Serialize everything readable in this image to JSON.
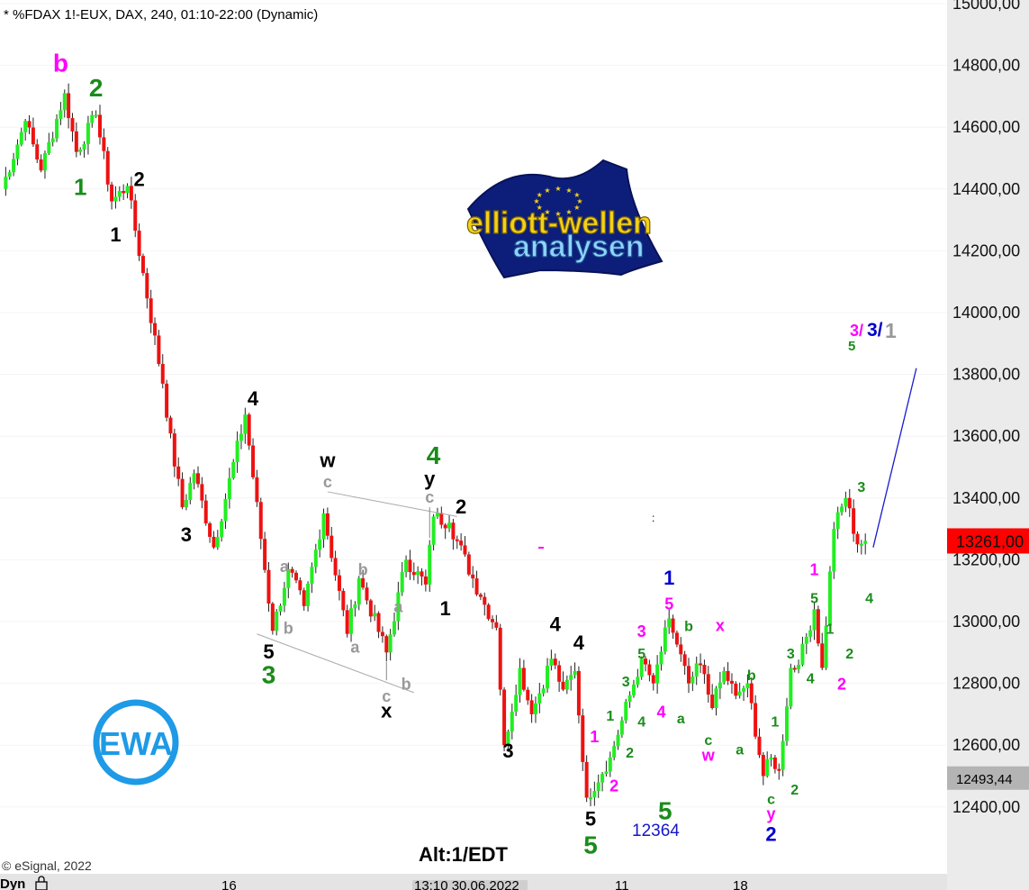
{
  "header": "* %FDAX 1!-EUX, DAX, 240, 01:10-22:00 (Dynamic)",
  "copyright": "© eSignal, 2022",
  "bottom_bar": {
    "mode_label": "Dyn",
    "date_labels": [
      "16",
      "13:10 30.06.2022",
      "11",
      "18"
    ]
  },
  "price_tags": {
    "current": "13261,00",
    "current_value": 13261,
    "secondary": "12493,44",
    "secondary_value": 12493.44
  },
  "annotations": {
    "low_value": "12364",
    "alt_count": "Alt:1/EDT",
    "target_magenta": "3/",
    "target_blue": "3/",
    "target_gray": "1",
    "target_green": "5"
  },
  "logo": {
    "line1": "elliott-wellen",
    "line2": "analysen",
    "badge": "EWA"
  },
  "colors": {
    "bull_candle": "#22ee22",
    "bear_candle": "#ee1111",
    "wave_green": "#1a8c1a",
    "wave_magenta": "#ff00ff",
    "wave_blue": "#0000cc",
    "wave_gray": "#999999",
    "price_tag_red": "#ff0000",
    "logo_blue": "#1e9ae6"
  },
  "chart_data": {
    "type": "candlestick",
    "instrument": "%FDAX 1!-EUX",
    "timeframe": "240",
    "ylim": [
      12300,
      15000
    ],
    "y_ticks": [
      12400,
      12600,
      12800,
      13000,
      13200,
      13400,
      13600,
      13800,
      14000,
      14200,
      14400,
      14600,
      14800,
      15000
    ],
    "y_tick_labels": [
      "12400,00",
      "12600,00",
      "12800,00",
      "13000,00",
      "13200,00",
      "13400,00",
      "13600,00",
      "13800,00",
      "14000,00",
      "14200,00",
      "14400,00",
      "14600,00",
      "14800,00",
      "15000,00"
    ],
    "pivots": [
      {
        "bar": 0,
        "price": 14400
      },
      {
        "bar": 6,
        "price": 14620
      },
      {
        "bar": 10,
        "price": 14460
      },
      {
        "bar": 16,
        "price": 14710
      },
      {
        "bar": 19,
        "price": 14520
      },
      {
        "bar": 24,
        "price": 14640
      },
      {
        "bar": 28,
        "price": 14360
      },
      {
        "bar": 32,
        "price": 14410
      },
      {
        "bar": 41,
        "price": 13770
      },
      {
        "bar": 42,
        "price": 13660
      },
      {
        "bar": 46,
        "price": 13370
      },
      {
        "bar": 49,
        "price": 13480
      },
      {
        "bar": 54,
        "price": 13240
      },
      {
        "bar": 62,
        "price": 13670
      },
      {
        "bar": 69,
        "price": 12970
      },
      {
        "bar": 73,
        "price": 13170
      },
      {
        "bar": 77,
        "price": 13050
      },
      {
        "bar": 82,
        "price": 13350
      },
      {
        "bar": 88,
        "price": 12960
      },
      {
        "bar": 91,
        "price": 13140
      },
      {
        "bar": 98,
        "price": 12900
      },
      {
        "bar": 103,
        "price": 13200
      },
      {
        "bar": 108,
        "price": 13120
      },
      {
        "bar": 110,
        "price": 13340
      },
      {
        "bar": 114,
        "price": 13320
      },
      {
        "bar": 122,
        "price": 13080
      },
      {
        "bar": 126,
        "price": 12980
      },
      {
        "bar": 128,
        "price": 12600
      },
      {
        "bar": 132,
        "price": 12850
      },
      {
        "bar": 135,
        "price": 12700
      },
      {
        "bar": 140,
        "price": 12880
      },
      {
        "bar": 143,
        "price": 12780
      },
      {
        "bar": 146,
        "price": 12840
      },
      {
        "bar": 149,
        "price": 12430
      },
      {
        "bar": 155,
        "price": 12560
      },
      {
        "bar": 158,
        "price": 12680
      },
      {
        "bar": 163,
        "price": 12880
      },
      {
        "bar": 166,
        "price": 12800
      },
      {
        "bar": 170,
        "price": 13010
      },
      {
        "bar": 175,
        "price": 12800
      },
      {
        "bar": 178,
        "price": 12860
      },
      {
        "bar": 181,
        "price": 12720
      },
      {
        "bar": 184,
        "price": 12840
      },
      {
        "bar": 187,
        "price": 12760
      },
      {
        "bar": 190,
        "price": 12800
      },
      {
        "bar": 194,
        "price": 12500
      },
      {
        "bar": 196,
        "price": 12560
      },
      {
        "bar": 198,
        "price": 12520
      },
      {
        "bar": 201,
        "price": 12850
      },
      {
        "bar": 203,
        "price": 12860
      },
      {
        "bar": 207,
        "price": 13040
      },
      {
        "bar": 209,
        "price": 12850
      },
      {
        "bar": 212,
        "price": 13300
      },
      {
        "bar": 215,
        "price": 13400
      },
      {
        "bar": 218,
        "price": 13250
      },
      {
        "bar": 220,
        "price": 13261
      }
    ],
    "projection": {
      "from_bar": 222,
      "from_price": 13240,
      "to_bar": 233,
      "to_price": 13820
    },
    "wave_labels": [
      {
        "text": "b",
        "color": "magenta",
        "bar": 15,
        "price": 14780,
        "size": 28
      },
      {
        "text": "2",
        "color": "green",
        "bar": 24,
        "price": 14700,
        "size": 28
      },
      {
        "text": "1",
        "color": "green",
        "bar": 20,
        "price": 14380,
        "size": 26
      },
      {
        "text": "2",
        "color": "black",
        "bar": 35,
        "price": 14410,
        "size": 22
      },
      {
        "text": "1",
        "color": "black",
        "bar": 29,
        "price": 14230,
        "size": 22
      },
      {
        "text": "4",
        "color": "black",
        "bar": 64,
        "price": 13700,
        "size": 22
      },
      {
        "text": "3",
        "color": "black",
        "bar": 47,
        "price": 13260,
        "size": 22
      },
      {
        "text": "w",
        "color": "black",
        "bar": 83,
        "price": 13500,
        "size": 22
      },
      {
        "text": "c",
        "color": "gray",
        "bar": 83,
        "price": 13435,
        "size": 18
      },
      {
        "text": "4",
        "color": "green",
        "bar": 110,
        "price": 13510,
        "size": 28
      },
      {
        "text": "y",
        "color": "black",
        "bar": 109,
        "price": 13440,
        "size": 22
      },
      {
        "text": "c",
        "color": "gray",
        "bar": 109,
        "price": 13385,
        "size": 18
      },
      {
        "text": "2",
        "color": "black",
        "bar": 117,
        "price": 13350,
        "size": 22
      },
      {
        "text": "a",
        "color": "gray",
        "bar": 72,
        "price": 13160,
        "size": 18
      },
      {
        "text": "b",
        "color": "gray",
        "bar": 92,
        "price": 13150,
        "size": 18
      },
      {
        "text": "a",
        "color": "gray",
        "bar": 101,
        "price": 13030,
        "size": 18
      },
      {
        "text": "b",
        "color": "gray",
        "bar": 73,
        "price": 12960,
        "size": 18
      },
      {
        "text": "a",
        "color": "gray",
        "bar": 90,
        "price": 12900,
        "size": 18
      },
      {
        "text": "b",
        "color": "gray",
        "bar": 103,
        "price": 12780,
        "size": 18
      },
      {
        "text": "c",
        "color": "gray",
        "bar": 98,
        "price": 12740,
        "size": 18
      },
      {
        "text": "x",
        "color": "black",
        "bar": 98,
        "price": 12690,
        "size": 22
      },
      {
        "text": "5",
        "color": "black",
        "bar": 68,
        "price": 12880,
        "size": 22
      },
      {
        "text": "3",
        "color": "green",
        "bar": 68,
        "price": 12800,
        "size": 28
      },
      {
        "text": "1",
        "color": "black",
        "bar": 113,
        "price": 13020,
        "size": 22
      },
      {
        "text": "1",
        "color": "blue",
        "bar": 170,
        "price": 13120,
        "size": 22
      },
      {
        "text": "5",
        "color": "magenta",
        "bar": 170,
        "price": 13040,
        "size": 18
      },
      {
        "text": "4",
        "color": "black",
        "bar": 141,
        "price": 12970,
        "size": 22
      },
      {
        "text": "4",
        "color": "black",
        "bar": 147,
        "price": 12910,
        "size": 22
      },
      {
        "text": "3",
        "color": "magenta",
        "bar": 163,
        "price": 12950,
        "size": 18
      },
      {
        "text": "b",
        "color": "green",
        "bar": 175,
        "price": 12970,
        "size": 16
      },
      {
        "text": "x",
        "color": "magenta",
        "bar": 183,
        "price": 12970,
        "size": 18
      },
      {
        "text": "5",
        "color": "green",
        "bar": 163,
        "price": 12880,
        "size": 16
      },
      {
        "text": "3",
        "color": "green",
        "bar": 159,
        "price": 12790,
        "size": 16
      },
      {
        "text": "b",
        "color": "green",
        "bar": 191,
        "price": 12810,
        "size": 16
      },
      {
        "text": "4",
        "color": "green",
        "bar": 163,
        "price": 12660,
        "size": 16
      },
      {
        "text": "4",
        "color": "magenta",
        "bar": 168,
        "price": 12690,
        "size": 18
      },
      {
        "text": "a",
        "color": "green",
        "bar": 173,
        "price": 12670,
        "size": 16
      },
      {
        "text": "1",
        "color": "green",
        "bar": 155,
        "price": 12680,
        "size": 16
      },
      {
        "text": "3",
        "color": "black",
        "bar": 129,
        "price": 12560,
        "size": 22
      },
      {
        "text": "c",
        "color": "green",
        "bar": 180,
        "price": 12600,
        "size": 16
      },
      {
        "text": "a",
        "color": "green",
        "bar": 188,
        "price": 12570,
        "size": 16
      },
      {
        "text": "w",
        "color": "magenta",
        "bar": 180,
        "price": 12550,
        "size": 18
      },
      {
        "text": "1",
        "color": "magenta",
        "bar": 151,
        "price": 12610,
        "size": 18
      },
      {
        "text": "2",
        "color": "green",
        "bar": 160,
        "price": 12560,
        "size": 16
      },
      {
        "text": "2",
        "color": "magenta",
        "bar": 156,
        "price": 12450,
        "size": 18
      },
      {
        "text": "5",
        "color": "black",
        "bar": 150,
        "price": 12340,
        "size": 22
      },
      {
        "text": "5",
        "color": "green",
        "bar": 150,
        "price": 12250,
        "size": 28
      },
      {
        "text": "5",
        "color": "green",
        "bar": 169,
        "price": 12360,
        "size": 28
      },
      {
        "text": "c",
        "color": "green",
        "bar": 196,
        "price": 12410,
        "size": 16
      },
      {
        "text": "y",
        "color": "magenta",
        "bar": 196,
        "price": 12360,
        "size": 18
      },
      {
        "text": "2",
        "color": "blue",
        "bar": 196,
        "price": 12290,
        "size": 22
      },
      {
        "text": "1",
        "color": "green",
        "bar": 197,
        "price": 12660,
        "size": 16
      },
      {
        "text": "2",
        "color": "green",
        "bar": 202,
        "price": 12440,
        "size": 16
      },
      {
        "text": "3",
        "color": "green",
        "bar": 201,
        "price": 12880,
        "size": 16
      },
      {
        "text": "4",
        "color": "green",
        "bar": 206,
        "price": 12800,
        "size": 16
      },
      {
        "text": "1",
        "color": "magenta",
        "bar": 207,
        "price": 13150,
        "size": 18
      },
      {
        "text": "5",
        "color": "green",
        "bar": 207,
        "price": 13060,
        "size": 16
      },
      {
        "text": "1",
        "color": "green",
        "bar": 211,
        "price": 12960,
        "size": 16
      },
      {
        "text": "2",
        "color": "green",
        "bar": 216,
        "price": 12880,
        "size": 16
      },
      {
        "text": "2",
        "color": "magenta",
        "bar": 214,
        "price": 12780,
        "size": 18
      },
      {
        "text": "3",
        "color": "green",
        "bar": 219,
        "price": 13420,
        "size": 16
      },
      {
        "text": "4",
        "color": "green",
        "bar": 221,
        "price": 13060,
        "size": 16
      }
    ],
    "channel_lines": [
      {
        "from_bar": 83,
        "from_price": 13420,
        "to_bar": 116,
        "to_price": 13340
      },
      {
        "from_bar": 65,
        "from_price": 12960,
        "to_bar": 105,
        "to_price": 12770
      }
    ],
    "vertical_wicks": [
      {
        "bar": 98,
        "low": 12810,
        "high": 12870
      },
      {
        "bar": 109,
        "low": 13270,
        "high": 13370
      }
    ]
  }
}
